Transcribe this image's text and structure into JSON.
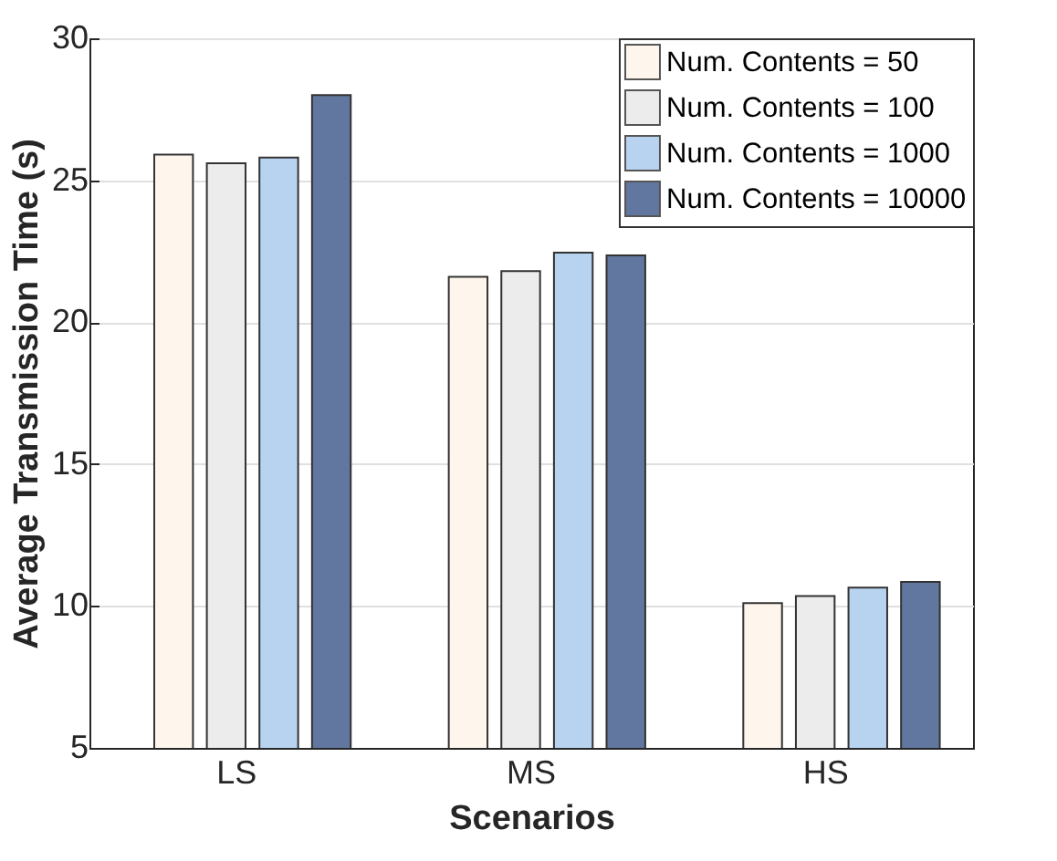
{
  "chart_data": {
    "type": "bar",
    "xlabel": "Scenarios",
    "ylabel": "Average Transmission Time (s)",
    "categories": [
      "LS",
      "MS",
      "HS"
    ],
    "series": [
      {
        "name": "Num. Contents = 50",
        "color": "#fef6ec",
        "values": [
          25.9,
          21.6,
          10.1
        ]
      },
      {
        "name": "Num. Contents = 100",
        "color": "#ececec",
        "values": [
          25.6,
          21.8,
          10.35
        ]
      },
      {
        "name": "Num. Contents = 1000",
        "color": "#b8d3f0",
        "values": [
          25.8,
          22.45,
          10.65
        ]
      },
      {
        "name": "Num. Contents = 10000",
        "color": "#62779f",
        "values": [
          28.0,
          22.35,
          10.85
        ]
      }
    ],
    "ylim": [
      5,
      30
    ],
    "yticks": [
      5,
      10,
      15,
      20,
      25,
      30
    ],
    "grid": "y",
    "legend": "top right"
  }
}
